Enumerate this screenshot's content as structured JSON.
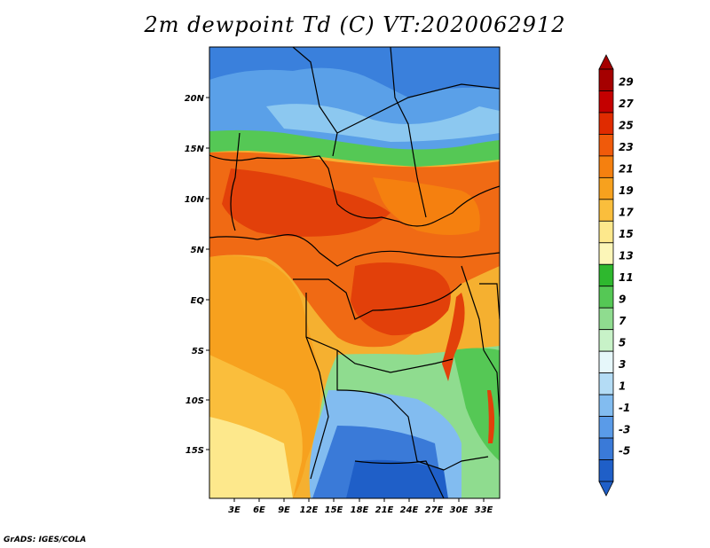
{
  "title": "2m dewpoint Td (C) VT:2020062912",
  "credit": "GrADS: IGES/COLA",
  "map": {
    "lat_labels": [
      "20N",
      "15N",
      "10N",
      "5N",
      "EQ",
      "5S",
      "10S",
      "15S"
    ],
    "lon_labels": [
      "3E",
      "6E",
      "9E",
      "12E",
      "15E",
      "18E",
      "21E",
      "24E",
      "27E",
      "30E",
      "33E"
    ]
  },
  "colorbar": {
    "labels": [
      "29",
      "27",
      "25",
      "23",
      "21",
      "19",
      "17",
      "15",
      "13",
      "11",
      "9",
      "7",
      "5",
      "3",
      "1",
      "-1",
      "-3",
      "-5"
    ],
    "colors": [
      "#a50000",
      "#c40000",
      "#e02b00",
      "#f05a0a",
      "#f5800f",
      "#f7a11e",
      "#fabe3c",
      "#fde88c",
      "#fcf6b8",
      "#2eb82e",
      "#55c855",
      "#8fdc8f",
      "#c8f2c8",
      "#e6f7fa",
      "#b4dcf5",
      "#82bcf0",
      "#5a9be8",
      "#3a7ad8",
      "#1f5fc8"
    ]
  }
}
